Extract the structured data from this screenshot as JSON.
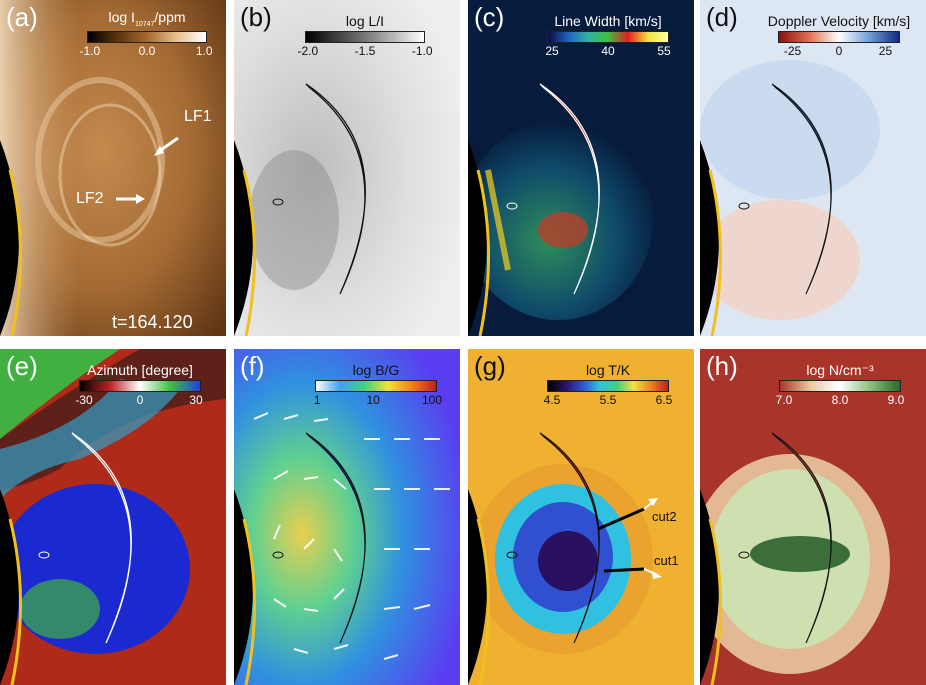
{
  "panels": {
    "a": {
      "label": "(a)",
      "colorbar": {
        "title": "log I",
        "title_sub": "10747",
        "title_tail": "/ppm",
        "ticks": [
          "-1.0",
          "0.0",
          "1.0"
        ]
      },
      "annotations": [
        "LF1",
        "LF2"
      ],
      "time": "t=164.120",
      "colors": {
        "bg": "#a66b32",
        "bright": "#f4e2c6",
        "dark": "#3a1f0c"
      }
    },
    "b": {
      "label": "(b)",
      "colorbar": {
        "title": "log L/I",
        "ticks": [
          "-2.0",
          "-1.5",
          "-1.0"
        ]
      },
      "colors": {
        "bg": "#d9d9d9"
      }
    },
    "c": {
      "label": "(c)",
      "colorbar": {
        "title": "Line Width [km/s]",
        "ticks": [
          "25",
          "40",
          "55"
        ]
      },
      "colors": {
        "bg": "#071b3c"
      }
    },
    "d": {
      "label": "(d)",
      "colorbar": {
        "title": "Doppler Velocity [km/s]",
        "ticks": [
          "-25",
          "0",
          "25"
        ]
      },
      "colors": {
        "bg": "#dde7f3"
      }
    },
    "e": {
      "label": "(e)",
      "colorbar": {
        "title": "Azimuth [degree]",
        "ticks": [
          "-30",
          "0",
          "30"
        ]
      },
      "colors": {
        "bg": "#b02a1a"
      }
    },
    "f": {
      "label": "(f)",
      "colorbar": {
        "title": "log B/G",
        "ticks": [
          "1",
          "10",
          "100"
        ]
      },
      "colors": {
        "bg": "#5a3df0"
      }
    },
    "g": {
      "label": "(g)",
      "colorbar": {
        "title": "log T/K",
        "ticks": [
          "4.5",
          "5.5",
          "6.5"
        ]
      },
      "annotations": [
        "cut2",
        "cut1"
      ],
      "colors": {
        "bg": "#f0b030"
      }
    },
    "h": {
      "label": "(h)",
      "colorbar": {
        "title": "log N/cm⁻³",
        "ticks": [
          "7.0",
          "8.0",
          "9.0"
        ]
      },
      "colors": {
        "bg": "#a8342a"
      }
    }
  }
}
